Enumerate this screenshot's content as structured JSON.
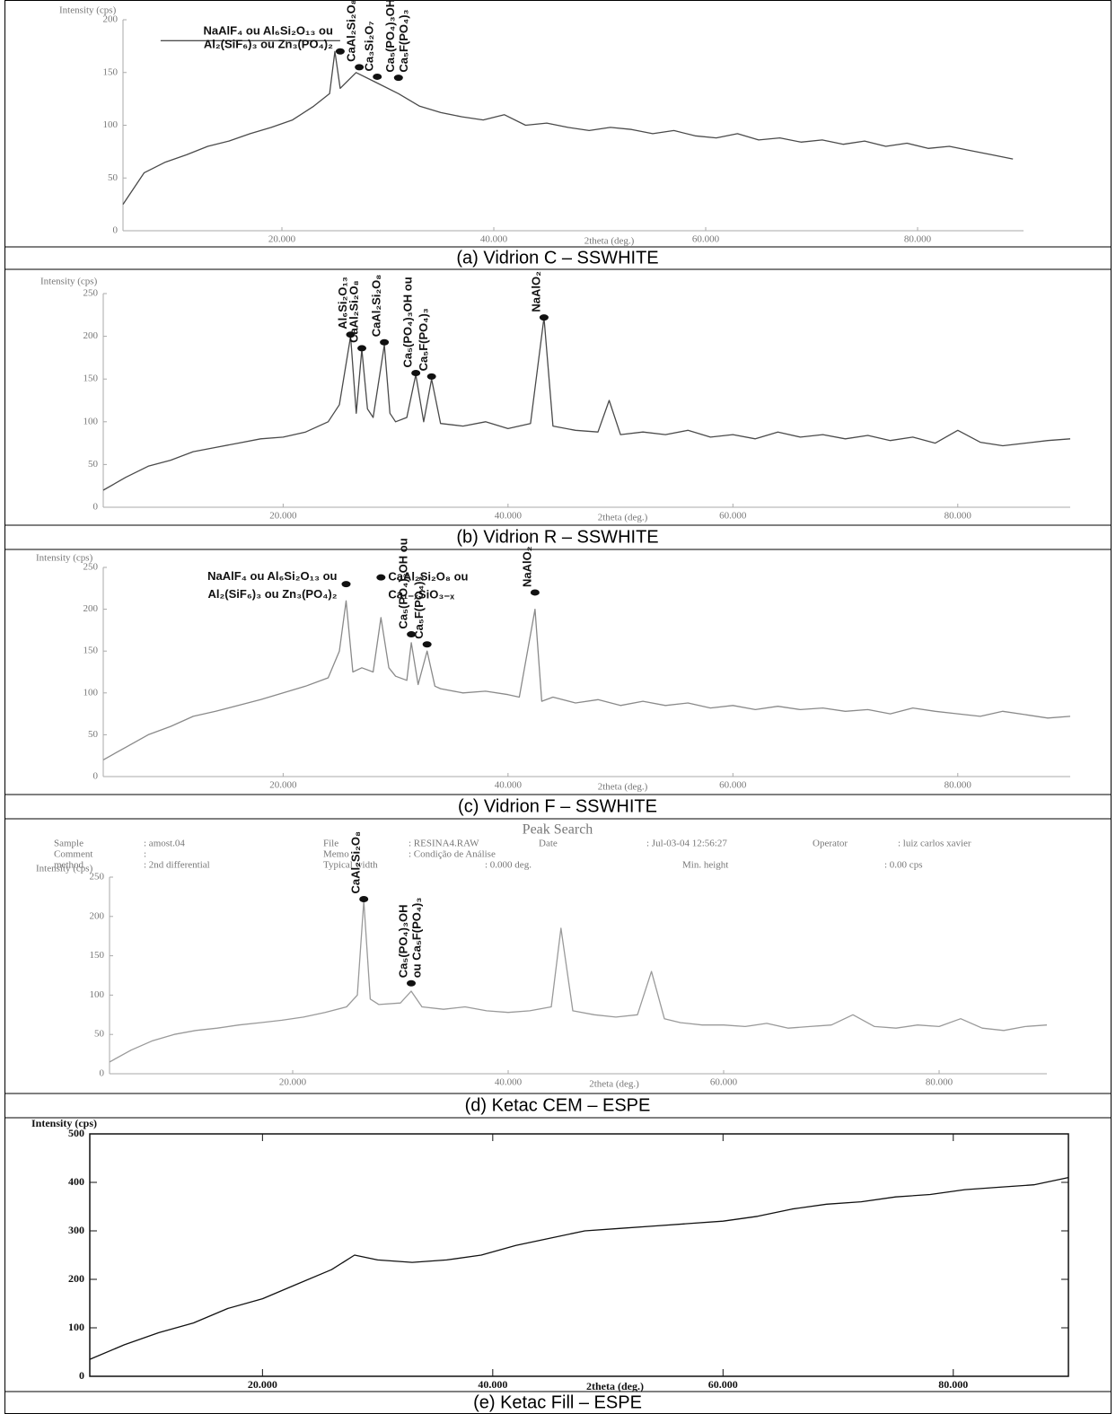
{
  "chart_data": [
    {
      "type": "line",
      "caption": "(a) Vidrion C – SSWHITE",
      "xlabel": "2theta (deg.)",
      "ylabel": "Intensity (cps)",
      "color": "#4a4a4a",
      "xlim": [
        5,
        90
      ],
      "ylim": [
        0,
        200
      ],
      "xticks": [
        {
          "value": 20,
          "label": "20.000"
        },
        {
          "value": 40,
          "label": "40.000"
        },
        {
          "value": 60,
          "label": "60.000"
        },
        {
          "value": 80,
          "label": "80.000"
        }
      ],
      "yticks": [
        0,
        50,
        100,
        150,
        200
      ],
      "x": [
        5,
        7,
        9,
        11,
        13,
        15,
        17,
        19,
        21,
        23,
        24.5,
        25,
        25.5,
        27,
        29,
        31,
        33,
        35,
        37,
        39,
        41,
        43,
        45,
        47,
        49,
        51,
        53,
        55,
        57,
        59,
        61,
        63,
        65,
        67,
        69,
        71,
        73,
        75,
        77,
        79,
        81,
        83,
        85,
        87,
        89
      ],
      "values": [
        25,
        55,
        65,
        72,
        80,
        85,
        92,
        98,
        105,
        118,
        130,
        170,
        135,
        150,
        140,
        130,
        118,
        112,
        108,
        105,
        110,
        100,
        102,
        98,
        95,
        98,
        96,
        92,
        95,
        90,
        88,
        92,
        86,
        88,
        84,
        86,
        82,
        85,
        80,
        83,
        78,
        80,
        76,
        72,
        68
      ],
      "annotations": [
        {
          "lines": [
            "NaAlF₄ ou Al₆Si₂O₁₃ ou",
            "Al₂(SiF₆)₃ ou Zn₃(PO₄)₂"
          ],
          "x": 25.5,
          "y": 170
        },
        {
          "lines": [
            "CaAl₂Si₂O₈"
          ],
          "x": 27.3,
          "y": 155
        },
        {
          "lines": [
            "Ca₃Si₂O₇"
          ],
          "x": 29,
          "y": 146
        },
        {
          "lines": [
            "Ca₅(PO₄)₃OH ou",
            "Ca₅F(PO₄)₃"
          ],
          "x": 31,
          "y": 145
        }
      ]
    },
    {
      "type": "line",
      "caption": "(b) Vidrion R – SSWHITE",
      "xlabel": "2theta (deg.)",
      "ylabel": "Intensity (cps)",
      "color": "#4a4a4a",
      "xlim": [
        4,
        90
      ],
      "ylim": [
        0,
        250
      ],
      "xticks": [
        {
          "value": 20,
          "label": "20.000"
        },
        {
          "value": 40,
          "label": "40.000"
        },
        {
          "value": 60,
          "label": "60.000"
        },
        {
          "value": 80,
          "label": "80.000"
        }
      ],
      "yticks": [
        0,
        50,
        100,
        150,
        200,
        250
      ],
      "x": [
        4,
        6,
        8,
        10,
        12,
        14,
        16,
        18,
        20,
        22,
        24,
        25,
        26,
        26.5,
        27,
        27.5,
        28,
        29,
        29.5,
        30,
        31,
        31.8,
        32.5,
        33.2,
        34,
        36,
        38,
        40,
        42,
        43.2,
        44,
        46,
        48,
        49,
        50,
        52,
        54,
        56,
        58,
        60,
        62,
        64,
        66,
        68,
        70,
        72,
        74,
        76,
        78,
        80,
        82,
        84,
        86,
        88,
        90
      ],
      "values": [
        20,
        35,
        48,
        55,
        65,
        70,
        75,
        80,
        82,
        88,
        100,
        120,
        200,
        110,
        185,
        115,
        105,
        190,
        110,
        100,
        105,
        155,
        100,
        150,
        98,
        95,
        100,
        92,
        98,
        222,
        95,
        90,
        88,
        125,
        85,
        88,
        85,
        90,
        82,
        85,
        80,
        88,
        82,
        85,
        80,
        84,
        78,
        82,
        75,
        90,
        76,
        72,
        75,
        78,
        80
      ],
      "annotations": [
        {
          "lines": [
            "Al₆Si₂O₁₃"
          ],
          "x": 26,
          "y": 202
        },
        {
          "lines": [
            "CaAl₂Si₂O₈"
          ],
          "x": 27,
          "y": 186
        },
        {
          "lines": [
            "CaAl₂Si₂O₈"
          ],
          "x": 29,
          "y": 193
        },
        {
          "lines": [
            "Ca₅(PO₄)₃OH ou"
          ],
          "x": 31.8,
          "y": 157
        },
        {
          "lines": [
            "Ca₅F(PO₄)₃"
          ],
          "x": 33.2,
          "y": 153
        },
        {
          "lines": [
            "NaAlO₂"
          ],
          "x": 43.2,
          "y": 222
        }
      ]
    },
    {
      "type": "line",
      "caption": "(c) Vidrion F – SSWHITE",
      "xlabel": "2theta (deg.)",
      "ylabel": "Intensity (cps)",
      "color": "#8a8a8a",
      "xlim": [
        4,
        90
      ],
      "ylim": [
        0,
        250
      ],
      "xticks": [
        {
          "value": 20,
          "label": "20.000"
        },
        {
          "value": 40,
          "label": "40.000"
        },
        {
          "value": 60,
          "label": "60.000"
        },
        {
          "value": 80,
          "label": "80.000"
        }
      ],
      "yticks": [
        0,
        50,
        100,
        150,
        200,
        250
      ],
      "x": [
        4,
        6,
        8,
        10,
        12,
        14,
        16,
        18,
        20,
        22,
        24,
        25,
        25.6,
        26.2,
        27,
        28,
        28.7,
        29.4,
        30,
        31,
        31.4,
        32,
        32.8,
        33.5,
        34,
        36,
        38,
        40,
        41,
        42.4,
        43,
        44,
        46,
        48,
        50,
        52,
        54,
        56,
        58,
        60,
        62,
        64,
        66,
        68,
        70,
        72,
        74,
        76,
        78,
        80,
        82,
        84,
        86,
        88,
        90
      ],
      "values": [
        20,
        35,
        50,
        60,
        72,
        78,
        85,
        92,
        100,
        108,
        118,
        150,
        210,
        125,
        130,
        125,
        190,
        130,
        120,
        115,
        160,
        110,
        150,
        108,
        105,
        100,
        102,
        98,
        95,
        200,
        90,
        95,
        88,
        92,
        85,
        90,
        85,
        88,
        82,
        85,
        80,
        84,
        80,
        82,
        78,
        80,
        75,
        82,
        78,
        75,
        72,
        78,
        74,
        70,
        72
      ],
      "annotations": [
        {
          "lines": [
            "NaAlF₄ ou Al₆Si₂O₁₃ ou",
            "Al₂(SiF₆)₃ ou Zn₃(PO₄)₂"
          ],
          "x": 25.6,
          "y": 230
        },
        {
          "lines": [
            "CaAl₂Si₂O₈ ou",
            "Ca₁₋ₓSiO₃₋ₓ"
          ],
          "x": 28.7,
          "y": 238
        },
        {
          "lines": [
            "Ca₅(PO₄)₃OH ou"
          ],
          "x": 31.4,
          "y": 170
        },
        {
          "lines": [
            "Ca₅F(PO₄)₃"
          ],
          "x": 32.8,
          "y": 158
        },
        {
          "lines": [
            "NaAlO₂"
          ],
          "x": 42.4,
          "y": 220
        }
      ]
    },
    {
      "type": "line",
      "caption": "(d) Ketac CEM – ESPE",
      "xlabel": "2theta (deg.)",
      "ylabel": "Intensity (cps)",
      "color": "#9a9a9a",
      "header": {
        "title": "Peak Search",
        "rows": [
          [
            "Sample",
            ": amost.04",
            "File",
            ": RESINA4.RAW",
            "Date",
            ": Jul-03-04   12:56:27",
            "Operator",
            ": luiz carlos xavier"
          ],
          [
            "Comment",
            ":",
            "Memo",
            ": Condição de Análise"
          ],
          [
            "method",
            ": 2nd differential",
            "Typical width",
            ": 0.000 deg.",
            "Min. height",
            ": 0.00 cps"
          ]
        ]
      },
      "xlim": [
        3,
        90
      ],
      "ylim": [
        0,
        250
      ],
      "xticks": [
        {
          "value": 20,
          "label": "20.000"
        },
        {
          "value": 40,
          "label": "40.000"
        },
        {
          "value": 60,
          "label": "60.000"
        },
        {
          "value": 80,
          "label": "80.000"
        }
      ],
      "yticks": [
        0,
        50,
        100,
        150,
        200,
        250
      ],
      "x": [
        3,
        5,
        7,
        9,
        11,
        13,
        15,
        17,
        19,
        21,
        23,
        25,
        26,
        26.6,
        27.2,
        28,
        30,
        31,
        32,
        34,
        36,
        38,
        40,
        42,
        44,
        44.9,
        46,
        48,
        50,
        52,
        53.3,
        54.5,
        56,
        58,
        60,
        62,
        64,
        66,
        68,
        70,
        72,
        74,
        76,
        78,
        80,
        82,
        84,
        86,
        88,
        90
      ],
      "values": [
        15,
        30,
        42,
        50,
        55,
        58,
        62,
        65,
        68,
        72,
        78,
        85,
        100,
        220,
        95,
        88,
        90,
        105,
        85,
        82,
        85,
        80,
        78,
        80,
        85,
        185,
        80,
        75,
        72,
        75,
        130,
        70,
        65,
        62,
        62,
        60,
        64,
        58,
        60,
        62,
        75,
        60,
        58,
        62,
        60,
        70,
        58,
        55,
        60,
        62
      ],
      "annotations": [
        {
          "lines": [
            "CaAl₂Si₂O₈"
          ],
          "x": 26.6,
          "y": 222
        },
        {
          "lines": [
            "Ca₅(PO₄)₃OH",
            "ou Ca₅F(PO₄)₃"
          ],
          "x": 31,
          "y": 115
        }
      ]
    },
    {
      "type": "line",
      "caption": "(e) Ketac Fill – ESPE",
      "xlabel": "2theta (deg.)",
      "ylabel": "Intensity (cps)",
      "color": "#111111",
      "xlim": [
        5,
        90
      ],
      "ylim": [
        0,
        500
      ],
      "xticks": [
        {
          "value": 20,
          "label": "20.000"
        },
        {
          "value": 40,
          "label": "40.000"
        },
        {
          "value": 60,
          "label": "60.000"
        },
        {
          "value": 80,
          "label": "80.000"
        }
      ],
      "yticks": [
        0,
        100,
        200,
        300,
        400,
        500
      ],
      "x": [
        5,
        8,
        11,
        14,
        17,
        20,
        23,
        26,
        28,
        30,
        33,
        36,
        39,
        42,
        45,
        48,
        51,
        54,
        57,
        60,
        63,
        66,
        69,
        72,
        75,
        78,
        81,
        84,
        87,
        90
      ],
      "values": [
        35,
        65,
        90,
        110,
        140,
        160,
        190,
        220,
        250,
        240,
        235,
        240,
        250,
        270,
        285,
        300,
        305,
        310,
        315,
        320,
        330,
        345,
        355,
        360,
        370,
        375,
        385,
        390,
        395,
        410
      ],
      "annotations": []
    }
  ]
}
